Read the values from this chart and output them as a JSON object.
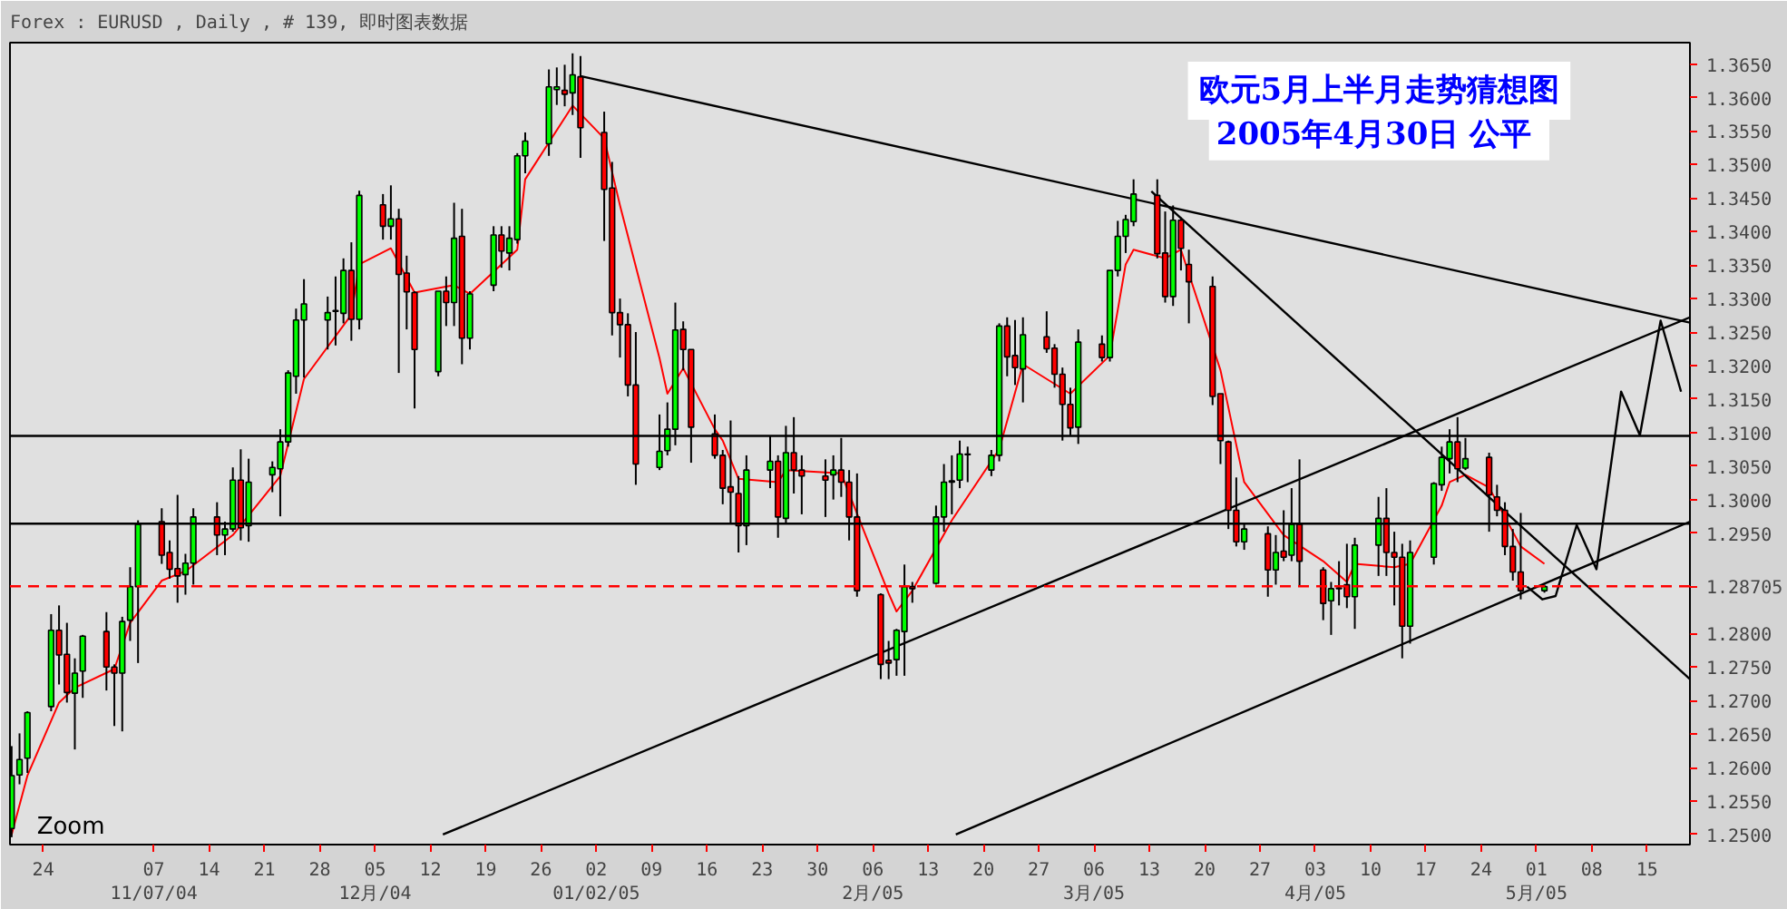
{
  "chart_data": {
    "type": "candlestick",
    "title": "Forex : EURUSD , Daily , # 139, 即时图表数据",
    "annotations": [
      "欧元5月上半月走势猜想图",
      "2005年4月30日  公平",
      "Zoom"
    ],
    "x": [
      "2004-10-20",
      "2004-10-21",
      "2004-10-22",
      "2004-10-25",
      "2004-10-26",
      "2004-10-27",
      "2004-10-28",
      "2004-10-29",
      "2004-11-01",
      "2004-11-02",
      "2004-11-03",
      "2004-11-04",
      "2004-11-05",
      "2004-11-08",
      "2004-11-09",
      "2004-11-10",
      "2004-11-11",
      "2004-11-12",
      "2004-11-15",
      "2004-11-16",
      "2004-11-17",
      "2004-11-18",
      "2004-11-19",
      "2004-11-22",
      "2004-11-23",
      "2004-11-24",
      "2004-11-25",
      "2004-11-26",
      "2004-11-29",
      "2004-11-30",
      "2004-12-01",
      "2004-12-02",
      "2004-12-03",
      "2004-12-06",
      "2004-12-07",
      "2004-12-08",
      "2004-12-09",
      "2004-12-10",
      "2004-12-13",
      "2004-12-14",
      "2004-12-15",
      "2004-12-16",
      "2004-12-17",
      "2004-12-20",
      "2004-12-21",
      "2004-12-22",
      "2004-12-23",
      "2004-12-24",
      "2004-12-27",
      "2004-12-28",
      "2004-12-29",
      "2004-12-30",
      "2004-12-31",
      "2005-01-03",
      "2005-01-04",
      "2005-01-05",
      "2005-01-06",
      "2005-01-07",
      "2005-01-10",
      "2005-01-11",
      "2005-01-12",
      "2005-01-13",
      "2005-01-14",
      "2005-01-17",
      "2005-01-18",
      "2005-01-19",
      "2005-01-20",
      "2005-01-21",
      "2005-01-24",
      "2005-01-25",
      "2005-01-26",
      "2005-01-27",
      "2005-01-28",
      "2005-01-31",
      "2005-02-01",
      "2005-02-02",
      "2005-02-03",
      "2005-02-04",
      "2005-02-07",
      "2005-02-08",
      "2005-02-09",
      "2005-02-10",
      "2005-02-11",
      "2005-02-14",
      "2005-02-15",
      "2005-02-16",
      "2005-02-17",
      "2005-02-18",
      "2005-02-21",
      "2005-02-22",
      "2005-02-23",
      "2005-02-24",
      "2005-02-25",
      "2005-02-28",
      "2005-03-01",
      "2005-03-02",
      "2005-03-03",
      "2005-03-04",
      "2005-03-07",
      "2005-03-08",
      "2005-03-09",
      "2005-03-10",
      "2005-03-11",
      "2005-03-14",
      "2005-03-15",
      "2005-03-16",
      "2005-03-17",
      "2005-03-18",
      "2005-03-21",
      "2005-03-22",
      "2005-03-23",
      "2005-03-24",
      "2005-03-25",
      "2005-03-28",
      "2005-03-29",
      "2005-03-30",
      "2005-03-31",
      "2005-04-01",
      "2005-04-04",
      "2005-04-05",
      "2005-04-06",
      "2005-04-07",
      "2005-04-08",
      "2005-04-11",
      "2005-04-12",
      "2005-04-13",
      "2005-04-14",
      "2005-04-15",
      "2005-04-18",
      "2005-04-19",
      "2005-04-20",
      "2005-04-21",
      "2005-04-22",
      "2005-04-25",
      "2005-04-26",
      "2005-04-27",
      "2005-04-28",
      "2005-04-29",
      "2005-05-02"
    ],
    "ohlc": [
      [
        1.2509,
        1.2632,
        1.2496,
        1.2588
      ],
      [
        1.2589,
        1.2651,
        1.2575,
        1.2612
      ],
      [
        1.2614,
        1.2684,
        1.2592,
        1.2682
      ],
      [
        1.2691,
        1.2829,
        1.2684,
        1.2805
      ],
      [
        1.2805,
        1.2842,
        1.2724,
        1.2768
      ],
      [
        1.2769,
        1.2816,
        1.2697,
        1.2712
      ],
      [
        1.2711,
        1.2763,
        1.2627,
        1.2741
      ],
      [
        1.2744,
        1.2798,
        1.2704,
        1.2796
      ],
      [
        1.2803,
        1.2832,
        1.2715,
        1.275
      ],
      [
        1.275,
        1.2754,
        1.2662,
        1.2741
      ],
      [
        1.2741,
        1.2825,
        1.2654,
        1.2818
      ],
      [
        1.282,
        1.2899,
        1.2789,
        1.287
      ],
      [
        1.287,
        1.2969,
        1.2756,
        1.2963
      ],
      [
        1.2967,
        1.2987,
        1.2904,
        1.2917
      ],
      [
        1.2921,
        1.2939,
        1.2882,
        1.2896
      ],
      [
        1.2897,
        1.3007,
        1.2846,
        1.2886
      ],
      [
        1.2888,
        1.2919,
        1.2858,
        1.2905
      ],
      [
        1.2905,
        1.2987,
        1.2873,
        1.2974
      ],
      [
        1.2974,
        1.2996,
        1.2917,
        1.2947
      ],
      [
        1.2947,
        1.2967,
        1.2917,
        1.2956
      ],
      [
        1.2956,
        1.3048,
        1.2952,
        1.3029
      ],
      [
        1.3029,
        1.3075,
        1.2939,
        1.2958
      ],
      [
        1.2961,
        1.3061,
        1.2937,
        1.3026
      ],
      [
        1.3037,
        1.3057,
        1.3011,
        1.3048
      ],
      [
        1.3046,
        1.3105,
        1.2975,
        1.3086
      ],
      [
        1.3086,
        1.3193,
        1.3079,
        1.3189
      ],
      [
        1.3184,
        1.3285,
        1.3158,
        1.3268
      ],
      [
        1.3268,
        1.3329,
        1.3182,
        1.3292
      ],
      [
        1.3268,
        1.3303,
        1.3224,
        1.3279
      ],
      [
        1.3281,
        1.3333,
        1.323,
        1.3282
      ],
      [
        1.3278,
        1.336,
        1.3263,
        1.3342
      ],
      [
        1.3342,
        1.3384,
        1.3237,
        1.3269
      ],
      [
        1.3269,
        1.3461,
        1.3254,
        1.3454
      ],
      [
        1.344,
        1.3456,
        1.3388,
        1.3408
      ],
      [
        1.3408,
        1.3469,
        1.3388,
        1.3419
      ],
      [
        1.3419,
        1.3434,
        1.3189,
        1.3336
      ],
      [
        1.3338,
        1.3364,
        1.3254,
        1.331
      ],
      [
        1.3309,
        1.3311,
        1.3136,
        1.3224
      ],
      [
        1.3191,
        1.3311,
        1.3184,
        1.3311
      ],
      [
        1.3311,
        1.3333,
        1.3259,
        1.3294
      ],
      [
        1.3294,
        1.3443,
        1.3259,
        1.339
      ],
      [
        1.3393,
        1.3434,
        1.3202,
        1.3241
      ],
      [
        1.3241,
        1.3311,
        1.3224,
        1.3307
      ],
      [
        1.332,
        1.3408,
        1.3311,
        1.3395
      ],
      [
        1.3395,
        1.3408,
        1.3346,
        1.3371
      ],
      [
        1.3368,
        1.3408,
        1.3342,
        1.339
      ],
      [
        1.3388,
        1.3517,
        1.3382,
        1.3513
      ],
      [
        1.3513,
        1.3548,
        1.3487,
        1.3535
      ],
      [
        1.3531,
        1.3642,
        1.3513,
        1.3616
      ],
      [
        1.3612,
        1.3645,
        1.3589,
        1.3616
      ],
      [
        1.3611,
        1.3649,
        1.3587,
        1.3605
      ],
      [
        1.3607,
        1.3666,
        1.3574,
        1.3634
      ],
      [
        1.3631,
        1.3662,
        1.351,
        1.3555
      ],
      [
        1.3548,
        1.3579,
        1.3386,
        1.3463
      ],
      [
        1.3465,
        1.3504,
        1.3245,
        1.3279
      ],
      [
        1.3279,
        1.33,
        1.3212,
        1.3261
      ],
      [
        1.3261,
        1.3278,
        1.3154,
        1.3171
      ],
      [
        1.3171,
        1.325,
        1.3022,
        1.3053
      ],
      [
        1.3048,
        1.3127,
        1.3044,
        1.3072
      ],
      [
        1.3073,
        1.3145,
        1.3066,
        1.3105
      ],
      [
        1.3105,
        1.3294,
        1.3081,
        1.3253
      ],
      [
        1.3254,
        1.3266,
        1.3193,
        1.3224
      ],
      [
        1.3224,
        1.3224,
        1.3055,
        1.3108
      ],
      [
        1.3098,
        1.3127,
        1.3061,
        1.3066
      ],
      [
        1.3066,
        1.3074,
        1.2993,
        1.3017
      ],
      [
        1.3019,
        1.3118,
        1.2965,
        1.3011
      ],
      [
        1.3009,
        1.3035,
        1.2921,
        1.2961
      ],
      [
        1.2961,
        1.3066,
        1.2932,
        1.3044
      ],
      [
        1.3044,
        1.3095,
        1.3017,
        1.3057
      ],
      [
        1.3057,
        1.3066,
        1.2943,
        1.2974
      ],
      [
        1.2972,
        1.311,
        1.2965,
        1.307
      ],
      [
        1.307,
        1.3123,
        1.3009,
        1.3044
      ],
      [
        1.3044,
        1.3066,
        1.2978,
        1.3035
      ],
      [
        1.3035,
        1.306,
        1.2974,
        1.3029
      ],
      [
        1.3037,
        1.3066,
        1.3,
        1.3044
      ],
      [
        1.3044,
        1.3092,
        1.3004,
        1.3026
      ],
      [
        1.3026,
        1.3044,
        1.2939,
        1.2974
      ],
      [
        1.2974,
        1.3039,
        1.2855,
        1.2864
      ],
      [
        1.2858,
        1.286,
        1.2732,
        1.2754
      ],
      [
        1.276,
        1.2789,
        1.2732,
        1.2756
      ],
      [
        1.2761,
        1.2807,
        1.2737,
        1.2805
      ],
      [
        1.2803,
        1.2903,
        1.2737,
        1.287
      ],
      [
        1.287,
        1.2877,
        1.2846,
        1.2867
      ],
      [
        1.2875,
        1.2991,
        1.2873,
        1.2974
      ],
      [
        1.2974,
        1.3053,
        1.2952,
        1.3026
      ],
      [
        1.3026,
        1.3066,
        1.2978,
        1.3028
      ],
      [
        1.3029,
        1.3088,
        1.3017,
        1.3068
      ],
      [
        1.3068,
        1.3079,
        1.3026,
        1.3067
      ],
      [
        1.3044,
        1.3074,
        1.3035,
        1.3066
      ],
      [
        1.3066,
        1.3263,
        1.3057,
        1.3259
      ],
      [
        1.3259,
        1.3272,
        1.3184,
        1.3213
      ],
      [
        1.3215,
        1.3268,
        1.3171,
        1.3197
      ],
      [
        1.3195,
        1.3272,
        1.3145,
        1.3246
      ],
      [
        1.3243,
        1.3281,
        1.3219,
        1.3225
      ],
      [
        1.3226,
        1.3232,
        1.3167,
        1.3187
      ],
      [
        1.3187,
        1.3197,
        1.3088,
        1.3142
      ],
      [
        1.3142,
        1.3167,
        1.3096,
        1.3107
      ],
      [
        1.3108,
        1.3254,
        1.3083,
        1.3235
      ],
      [
        1.3232,
        1.3245,
        1.3206,
        1.3212
      ],
      [
        1.3212,
        1.3342,
        1.3206,
        1.3342
      ],
      [
        1.3342,
        1.3416,
        1.3333,
        1.3393
      ],
      [
        1.3393,
        1.3425,
        1.3368,
        1.3418
      ],
      [
        1.3415,
        1.3478,
        1.3408,
        1.3456
      ],
      [
        1.3454,
        1.3478,
        1.336,
        1.3367
      ],
      [
        1.3368,
        1.343,
        1.3294,
        1.3303
      ],
      [
        1.3303,
        1.3439,
        1.3289,
        1.3417
      ],
      [
        1.3417,
        1.3421,
        1.3342,
        1.3375
      ],
      [
        1.3351,
        1.3373,
        1.3263,
        1.3325
      ],
      [
        1.3318,
        1.3333,
        1.3141,
        1.3154
      ],
      [
        1.3158,
        1.3158,
        1.3053,
        1.3088
      ],
      [
        1.3086,
        1.3088,
        1.2956,
        1.2984
      ],
      [
        1.2984,
        1.3033,
        1.293,
        1.2937
      ],
      [
        1.2937,
        1.2965,
        1.2925,
        1.2956
      ],
      [
        1.2949,
        1.296,
        1.2855,
        1.2895
      ],
      [
        1.2895,
        1.2947,
        1.2873,
        1.2921
      ],
      [
        1.2923,
        1.2984,
        1.2908,
        1.2914
      ],
      [
        1.2917,
        1.3017,
        1.2908,
        1.2963
      ],
      [
        1.2963,
        1.306,
        1.287,
        1.2908
      ],
      [
        1.2895,
        1.2899,
        1.282,
        1.2845
      ],
      [
        1.2849,
        1.2877,
        1.2798,
        1.2867
      ],
      [
        1.2868,
        1.2908,
        1.2842,
        1.2867
      ],
      [
        1.2873,
        1.2934,
        1.2838,
        1.2855
      ],
      [
        1.2855,
        1.2943,
        1.2807,
        1.2932
      ],
      [
        1.2932,
        1.3004,
        1.2886,
        1.2972
      ],
      [
        1.2972,
        1.3017,
        1.2886,
        1.2921
      ],
      [
        1.2921,
        1.2952,
        1.2842,
        1.2914
      ],
      [
        1.2914,
        1.2934,
        1.2763,
        1.2811
      ],
      [
        1.2811,
        1.2939,
        1.2785,
        1.2921
      ],
      [
        1.2914,
        1.3026,
        1.2903,
        1.3024
      ],
      [
        1.3022,
        1.3079,
        1.3013,
        1.3063
      ],
      [
        1.3061,
        1.3105,
        1.3039,
        1.3086
      ],
      [
        1.3086,
        1.3123,
        1.3026,
        1.3046
      ],
      [
        1.3047,
        1.3092,
        1.3044,
        1.3061
      ],
      [
        1.3063,
        1.307,
        1.2952,
        1.3007
      ],
      [
        1.3004,
        1.3022,
        1.2975,
        1.2984
      ],
      [
        1.2984,
        1.2996,
        1.2917,
        1.293
      ],
      [
        1.293,
        1.2956,
        1.2879,
        1.2892
      ],
      [
        1.2892,
        1.298,
        1.2851,
        1.2864
      ],
      [
        1.2864,
        1.2873,
        1.2861,
        1.287
      ]
    ],
    "colors": [
      "#00ff00",
      "#00ff00",
      "#00ff00",
      "#00ff00",
      "#ff0000",
      "#ff0000",
      "#00ff00",
      "#00ff00",
      "#ff0000",
      "#ff0000",
      "#00ff00",
      "#00ff00",
      "#00ff00",
      "#ff0000",
      "#ff0000",
      "#ff0000",
      "#00ff00",
      "#00ff00",
      "#ff0000",
      "#00ff00",
      "#00ff00",
      "#ff0000",
      "#00ff00",
      "#00ff00",
      "#00ff00",
      "#00ff00",
      "#00ff00",
      "#00ff00",
      "#00ff00",
      "#00ff00",
      "#00ff00",
      "#ff0000",
      "#00ff00",
      "#ff0000",
      "#00ff00",
      "#ff0000",
      "#ff0000",
      "#ff0000",
      "#00ff00",
      "#ff0000",
      "#00ff00",
      "#ff0000",
      "#00ff00",
      "#00ff00",
      "#ff0000",
      "#00ff00",
      "#00ff00",
      "#00ff00",
      "#00ff00",
      "#00ff00",
      "#ff0000",
      "#00ff00",
      "#ff0000",
      "#ff0000",
      "#ff0000",
      "#ff0000",
      "#ff0000",
      "#ff0000",
      "#00ff00",
      "#00ff00",
      "#00ff00",
      "#ff0000",
      "#ff0000",
      "#ff0000",
      "#ff0000",
      "#ff0000",
      "#ff0000",
      "#00ff00",
      "#00ff00",
      "#ff0000",
      "#00ff00",
      "#ff0000",
      "#ff0000",
      "#ff0000",
      "#00ff00",
      "#ff0000",
      "#ff0000",
      "#ff0000",
      "#ff0000",
      "#ff0000",
      "#00ff00",
      "#00ff00",
      "#ff0000",
      "#00ff00",
      "#00ff00",
      "#00ff00",
      "#00ff00",
      "#ff0000",
      "#00ff00",
      "#00ff00",
      "#ff0000",
      "#ff0000",
      "#00ff00",
      "#ff0000",
      "#ff0000",
      "#ff0000",
      "#ff0000",
      "#00ff00",
      "#ff0000",
      "#00ff00",
      "#00ff00",
      "#00ff00",
      "#00ff00",
      "#ff0000",
      "#ff0000",
      "#00ff00",
      "#ff0000",
      "#ff0000",
      "#ff0000",
      "#ff0000",
      "#ff0000",
      "#ff0000",
      "#00ff00",
      "#ff0000",
      "#00ff00",
      "#ff0000",
      "#00ff00",
      "#ff0000",
      "#ff0000",
      "#00ff00",
      "#ff0000",
      "#ff0000",
      "#00ff00",
      "#00ff00",
      "#ff0000",
      "#ff0000",
      "#ff0000",
      "#00ff00",
      "#00ff00",
      "#00ff00",
      "#00ff00",
      "#ff0000",
      "#00ff00",
      "#ff0000",
      "#ff0000",
      "#ff0000",
      "#ff0000",
      "#ff0000",
      "#00ff00"
    ],
    "series": [
      {
        "type": "line",
        "color": "#ff0000",
        "x": [
          "2004-10-20",
          "2004-10-22",
          "2004-10-26",
          "2004-10-28",
          "2004-11-02",
          "2004-11-04",
          "2004-11-08",
          "2004-11-11",
          "2004-11-17",
          "2004-11-23",
          "2004-11-26",
          "2004-12-02",
          "2004-12-03",
          "2004-12-07",
          "2004-12-10",
          "2004-12-15",
          "2004-12-17",
          "2004-12-23",
          "2004-12-24",
          "2004-12-30",
          "2005-01-03",
          "2005-01-05",
          "2005-01-10",
          "2005-01-11",
          "2005-01-13",
          "2005-01-17",
          "2005-01-18",
          "2005-01-20",
          "2005-01-25",
          "2005-01-26",
          "2005-02-02",
          "2005-02-03",
          "2005-02-08",
          "2005-02-09",
          "2005-02-11",
          "2005-02-16",
          "2005-02-22",
          "2005-02-25",
          "2005-03-03",
          "2005-03-08",
          "2005-03-10",
          "2005-03-11",
          "2005-03-15",
          "2005-03-17",
          "2005-03-22",
          "2005-03-25",
          "2005-03-30",
          "2005-04-04",
          "2005-04-07",
          "2005-04-08",
          "2005-04-13",
          "2005-04-15",
          "2005-04-19",
          "2005-04-20",
          "2005-04-22",
          "2005-04-25",
          "2005-04-27",
          "2005-04-29",
          "2005-05-02"
        ],
        "values": [
          1.25,
          1.2588,
          1.2697,
          1.2719,
          1.2747,
          1.2816,
          1.2879,
          1.2893,
          1.2947,
          1.3035,
          1.318,
          1.3276,
          1.3351,
          1.3375,
          1.3309,
          1.332,
          1.3307,
          1.3373,
          1.3478,
          1.3588,
          1.3539,
          1.3439,
          1.3211,
          1.3158,
          1.3196,
          1.3105,
          1.3088,
          1.3031,
          1.3026,
          1.3044,
          1.3039,
          1.3009,
          1.286,
          1.2833,
          1.2864,
          1.2969,
          1.3075,
          1.3202,
          1.3158,
          1.3215,
          1.3351,
          1.3373,
          1.336,
          1.3373,
          1.3193,
          1.3026,
          1.2947,
          1.2908,
          1.2877,
          1.2904,
          1.2899,
          1.2904,
          1.2991,
          1.3026,
          1.3037,
          1.3018,
          1.2974,
          1.293,
          1.2904
        ]
      },
      {
        "type": "line",
        "color": "#000000",
        "x": [
          "2004-12-31",
          "2005-05-20T10:00"
        ],
        "values": [
          1.3632,
          1.3264
        ]
      },
      {
        "type": "line",
        "color": "#000000",
        "x": [
          "2005-03-13T06:00",
          "2005-05-20T10:00"
        ],
        "values": [
          1.346,
          1.2732
        ]
      },
      {
        "type": "line",
        "color": "#000000",
        "x": [
          "2004-12-13T14:00",
          "2005-05-20T10:00"
        ],
        "values": [
          1.25,
          1.3272
        ]
      },
      {
        "type": "line",
        "color": "#000000",
        "x": [
          "2005-02-16T12:00",
          "2005-05-20T10:00"
        ],
        "values": [
          1.25,
          1.2967
        ]
      },
      {
        "type": "line",
        "color": "#000000",
        "x": [
          "2005-04-29T19:00",
          "2005-05-01T18:00",
          "2005-05-03T10:00",
          "2005-05-06T02:00",
          "2005-05-08T14:00",
          "2005-05-11T17:00",
          "2005-05-14T02:00",
          "2005-05-16T17:00",
          "2005-05-19T07:00"
        ],
        "values": [
          1.287,
          1.2851,
          1.2856,
          1.2962,
          1.2896,
          1.3161,
          1.3096,
          1.3267,
          1.3161
        ]
      }
    ],
    "xlim": [
      "2004-10-19T19:00",
      "2005-05-20T10:00"
    ],
    "ylim": [
      1.2485,
      1.3682
    ],
    "xticks": [
      {
        "value": "2004-10-24",
        "label": "24"
      },
      {
        "value": "2004-11-07",
        "label": "07\n11/07/04"
      },
      {
        "value": "2004-11-14",
        "label": "14"
      },
      {
        "value": "2004-11-21",
        "label": "21"
      },
      {
        "value": "2004-11-28",
        "label": "28"
      },
      {
        "value": "2004-12-05",
        "label": "05\n12月/04"
      },
      {
        "value": "2004-12-12",
        "label": "12"
      },
      {
        "value": "2004-12-19",
        "label": "19"
      },
      {
        "value": "2004-12-26",
        "label": "26"
      },
      {
        "value": "2005-01-02",
        "label": "02\n01/02/05"
      },
      {
        "value": "2005-01-09",
        "label": "09"
      },
      {
        "value": "2005-01-16",
        "label": "16"
      },
      {
        "value": "2005-01-23",
        "label": "23"
      },
      {
        "value": "2005-01-30",
        "label": "30"
      },
      {
        "value": "2005-02-06",
        "label": "06\n2月/05"
      },
      {
        "value": "2005-02-13",
        "label": "13"
      },
      {
        "value": "2005-02-20",
        "label": "20"
      },
      {
        "value": "2005-02-27",
        "label": "27"
      },
      {
        "value": "2005-03-06",
        "label": "06\n3月/05"
      },
      {
        "value": "2005-03-13",
        "label": "13"
      },
      {
        "value": "2005-03-20",
        "label": "20"
      },
      {
        "value": "2005-03-27",
        "label": "27"
      },
      {
        "value": "2005-04-03",
        "label": "03\n4月/05"
      },
      {
        "value": "2005-04-10",
        "label": "10"
      },
      {
        "value": "2005-04-17",
        "label": "17"
      },
      {
        "value": "2005-04-24",
        "label": "24"
      },
      {
        "value": "2005-05-01",
        "label": "01\n5月/05"
      },
      {
        "value": "2005-05-08",
        "label": "08"
      },
      {
        "value": "2005-05-15",
        "label": "15"
      }
    ],
    "yticks": [
      {
        "value": 1.25,
        "label": "1.2500"
      },
      {
        "value": 1.255,
        "label": "1.2550"
      },
      {
        "value": 1.26,
        "label": "1.2600"
      },
      {
        "value": 1.265,
        "label": "1.2650"
      },
      {
        "value": 1.27,
        "label": "1.2700"
      },
      {
        "value": 1.275,
        "label": "1.2750"
      },
      {
        "value": 1.28,
        "label": "1.2800"
      },
      {
        "value": 1.295,
        "label": "1.2950"
      },
      {
        "value": 1.3,
        "label": "1.3000"
      },
      {
        "value": 1.305,
        "label": "1.3050"
      },
      {
        "value": 1.31,
        "label": "1.3100"
      },
      {
        "value": 1.315,
        "label": "1.3150"
      },
      {
        "value": 1.32,
        "label": "1.3200"
      },
      {
        "value": 1.325,
        "label": "1.3250"
      },
      {
        "value": 1.33,
        "label": "1.3300"
      },
      {
        "value": 1.335,
        "label": "1.3350"
      },
      {
        "value": 1.34,
        "label": "1.3400"
      },
      {
        "value": 1.345,
        "label": "1.3450"
      },
      {
        "value": 1.35,
        "label": "1.3500"
      },
      {
        "value": 1.355,
        "label": "1.3550"
      },
      {
        "value": 1.36,
        "label": "1.3600"
      },
      {
        "value": 1.365,
        "label": "1.3650"
      }
    ],
    "ref_lines": [
      {
        "axis": "y",
        "value": 1.3095,
        "color": "#000000"
      },
      {
        "axis": "y",
        "value": 1.2964,
        "color": "#000000"
      },
      {
        "axis": "y",
        "value": 1.28705,
        "label": "1.28705",
        "color": "#ff0000",
        "line_style": "dashed"
      }
    ]
  }
}
